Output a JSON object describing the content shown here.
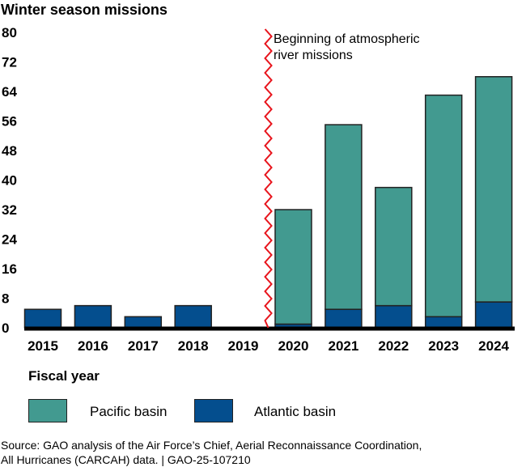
{
  "chart_data": {
    "type": "bar",
    "stacked": true,
    "title": "",
    "ylabel": "Winter season missions",
    "xlabel": "Fiscal year",
    "ylim": [
      0,
      80
    ],
    "yticks": [
      0,
      8,
      16,
      24,
      32,
      40,
      48,
      56,
      64,
      72,
      80
    ],
    "categories": [
      "2015",
      "2016",
      "2017",
      "2018",
      "2019",
      "2020",
      "2021",
      "2022",
      "2023",
      "2024"
    ],
    "series": [
      {
        "name": "Atlantic basin",
        "color": "#044E8E",
        "values": [
          5,
          6,
          3,
          6,
          0,
          1,
          5,
          6,
          3,
          7
        ]
      },
      {
        "name": "Pacific basin",
        "color": "#429A90",
        "values": [
          0,
          0,
          0,
          0,
          0,
          31,
          50,
          32,
          60,
          61
        ]
      }
    ],
    "legend_order": [
      "Pacific basin",
      "Atlantic basin"
    ],
    "legend_position": "bottom",
    "grid": false,
    "annotations": [
      {
        "text_line1": "Beginning of atmospheric",
        "text_line2": "river missions",
        "x_between": [
          "2019",
          "2020"
        ],
        "line_color": "#E8141C",
        "line_style": "zigzag"
      }
    ]
  },
  "source": {
    "line1": "Source: GAO analysis of the Air Force’s Chief, Aerial Reconnaissance Coordination,",
    "line2": "All Hurricanes (CARCAH) data.  |  GAO-25-107210"
  }
}
